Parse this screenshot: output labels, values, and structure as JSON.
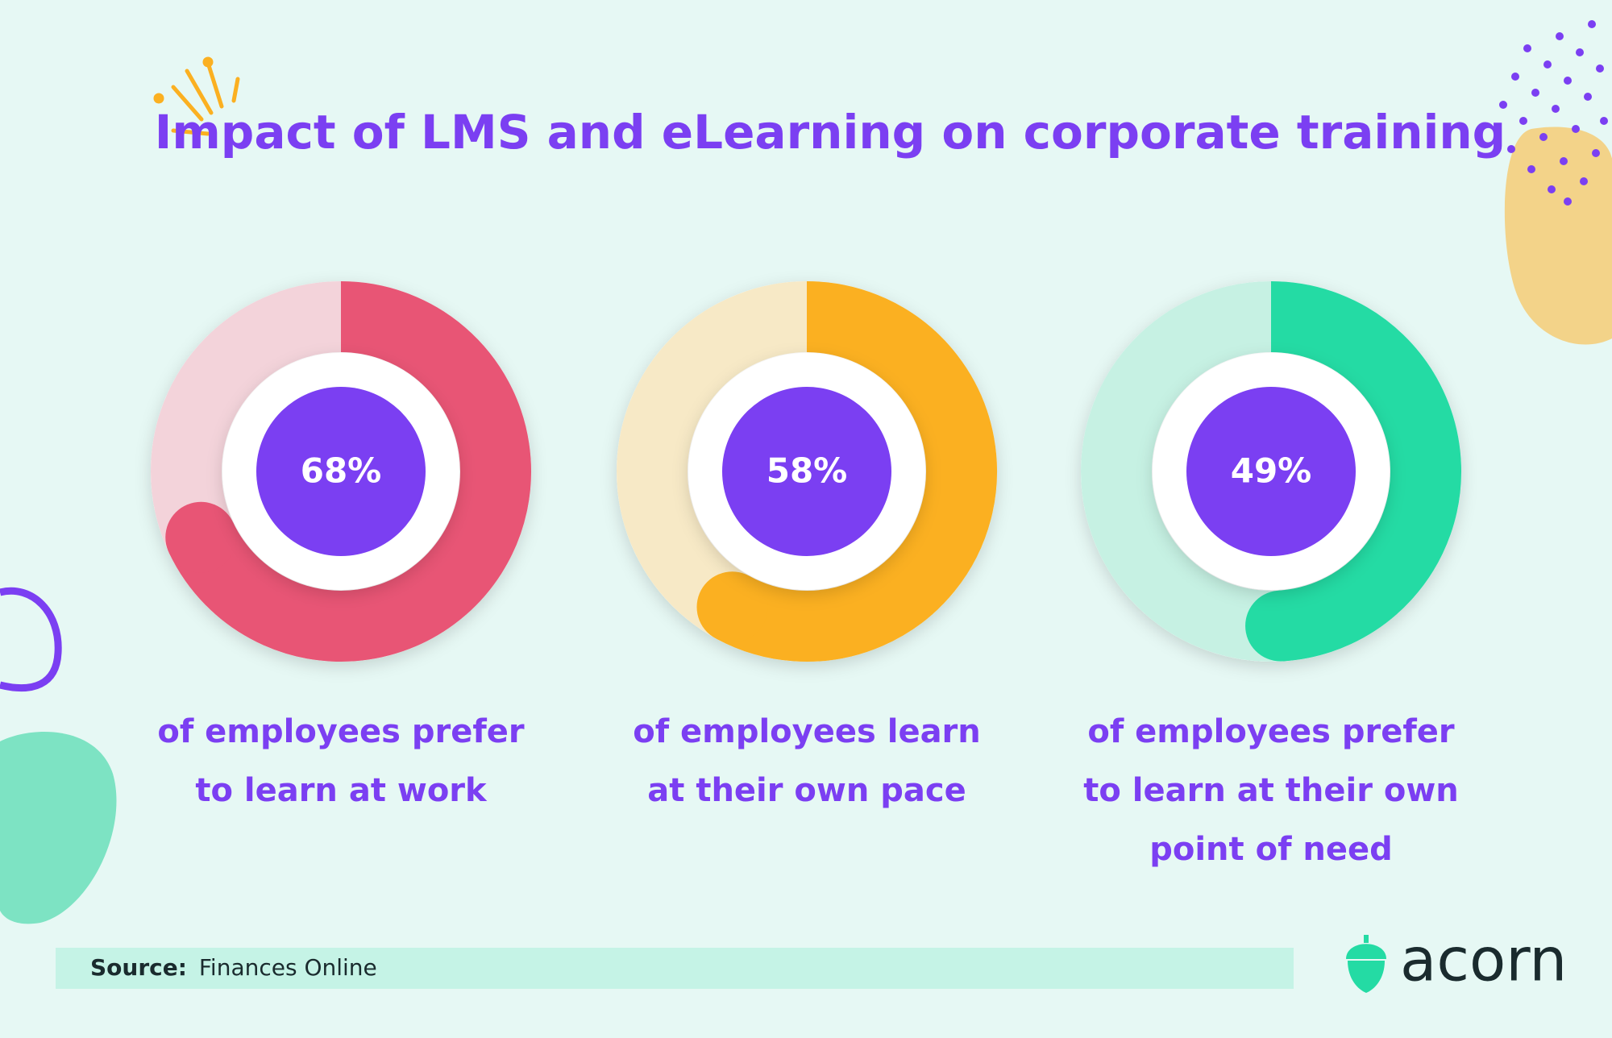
{
  "title": "Impact of LMS and eLearning on corporate training",
  "chart_data": [
    {
      "type": "donut",
      "values": [
        68
      ],
      "value_labels": [
        "68%"
      ],
      "color": "#e85575",
      "track_color": "#f3d3da",
      "caption": [
        "of employees prefer",
        "to learn at work"
      ]
    },
    {
      "type": "donut",
      "values": [
        58
      ],
      "value_labels": [
        "58%"
      ],
      "color": "#fbb021",
      "track_color": "#f7e9c6",
      "caption": [
        "of employees learn",
        "at their own pace"
      ]
    },
    {
      "type": "donut",
      "values": [
        49
      ],
      "value_labels": [
        "49%"
      ],
      "color": "#24dba4",
      "track_color": "#c6f1e3",
      "caption": [
        "of employees prefer",
        "to learn at their own",
        "point of need"
      ]
    }
  ],
  "source": {
    "label": "Source:",
    "text": "Finances Online"
  },
  "logo": "acorn"
}
